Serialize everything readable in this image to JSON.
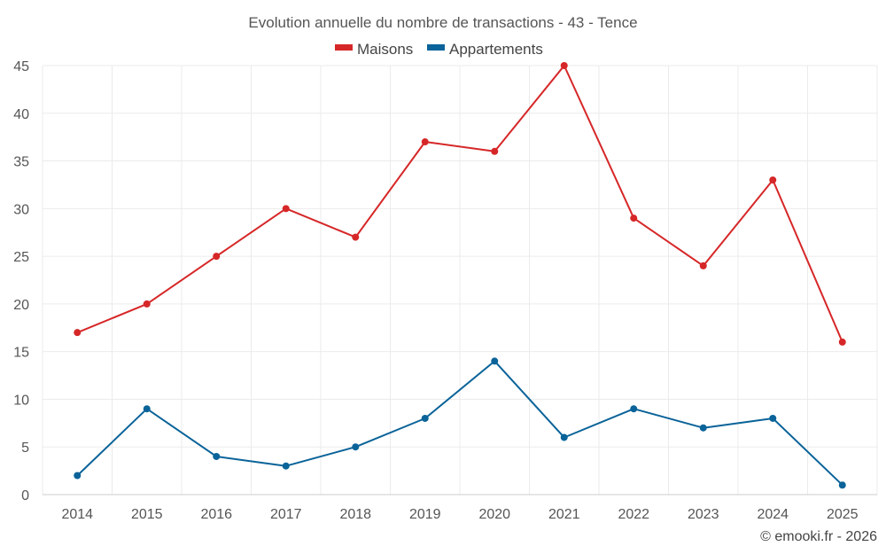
{
  "chart_data": {
    "type": "line",
    "title": "Evolution annuelle du nombre de transactions - 43 - Tence",
    "categories": [
      "2014",
      "2015",
      "2016",
      "2017",
      "2018",
      "2019",
      "2020",
      "2021",
      "2022",
      "2023",
      "2024",
      "2025"
    ],
    "series": [
      {
        "name": "Maisons",
        "color": "#d62728",
        "values": [
          17,
          20,
          25,
          30,
          27,
          37,
          36,
          45,
          29,
          24,
          33,
          16
        ]
      },
      {
        "name": "Appartements",
        "color": "#0a6399",
        "values": [
          2,
          9,
          4,
          3,
          5,
          8,
          14,
          6,
          9,
          7,
          8,
          1
        ]
      }
    ],
    "yticks": [
      "0",
      "5",
      "10",
      "15",
      "20",
      "25",
      "30",
      "35",
      "40",
      "45"
    ],
    "ylim": [
      0,
      45
    ],
    "xlabel": "",
    "ylabel": "",
    "grid": true,
    "legend": "top-center"
  },
  "credit": "© emooki.fr - 2026"
}
